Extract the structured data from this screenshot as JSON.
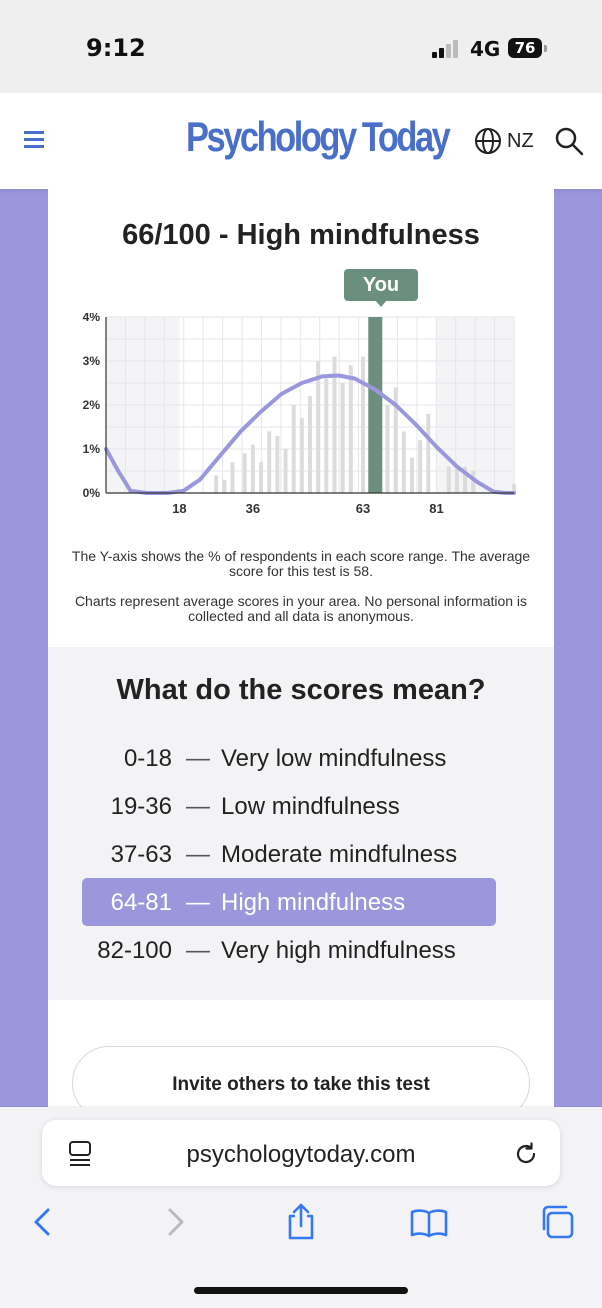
{
  "status_bar": {
    "time": "9:12",
    "network": "4G",
    "battery": "76"
  },
  "header": {
    "logo": "Psychology Today",
    "region": "NZ"
  },
  "result": {
    "title": "66/100 - High mindfulness",
    "marker_label": "You"
  },
  "chart_data": {
    "type": "bar",
    "x_ticks": [
      18,
      36,
      63,
      81
    ],
    "x_range": [
      0,
      100
    ],
    "y_ticks": [
      "0%",
      "1%",
      "2%",
      "3%",
      "4%"
    ],
    "ylim": [
      0,
      4
    ],
    "grid": true,
    "highlight_x": 66,
    "bars": [
      {
        "x": 27,
        "y": 0.4
      },
      {
        "x": 29,
        "y": 0.3
      },
      {
        "x": 31,
        "y": 0.7
      },
      {
        "x": 34,
        "y": 0.9
      },
      {
        "x": 36,
        "y": 1.1
      },
      {
        "x": 38,
        "y": 0.7
      },
      {
        "x": 40,
        "y": 1.4
      },
      {
        "x": 42,
        "y": 1.3
      },
      {
        "x": 44,
        "y": 1.0
      },
      {
        "x": 46,
        "y": 2.0
      },
      {
        "x": 48,
        "y": 1.7
      },
      {
        "x": 50,
        "y": 2.2
      },
      {
        "x": 52,
        "y": 3.0
      },
      {
        "x": 54,
        "y": 2.6
      },
      {
        "x": 56,
        "y": 3.1
      },
      {
        "x": 58,
        "y": 2.5
      },
      {
        "x": 60,
        "y": 2.9
      },
      {
        "x": 63,
        "y": 3.1
      },
      {
        "x": 66,
        "y": 4.0
      },
      {
        "x": 69,
        "y": 2.0
      },
      {
        "x": 71,
        "y": 2.4
      },
      {
        "x": 73,
        "y": 1.4
      },
      {
        "x": 75,
        "y": 0.8
      },
      {
        "x": 77,
        "y": 1.2
      },
      {
        "x": 79,
        "y": 1.8
      },
      {
        "x": 84,
        "y": 0.6
      },
      {
        "x": 86,
        "y": 0.6
      },
      {
        "x": 88,
        "y": 0.6
      },
      {
        "x": 90,
        "y": 0.5
      },
      {
        "x": 100,
        "y": 0.2
      }
    ],
    "curve": [
      {
        "x": 0,
        "y": 1.0
      },
      {
        "x": 3,
        "y": 0.5
      },
      {
        "x": 6,
        "y": 0.05
      },
      {
        "x": 10,
        "y": 0.0
      },
      {
        "x": 15,
        "y": 0.0
      },
      {
        "x": 19,
        "y": 0.05
      },
      {
        "x": 23,
        "y": 0.3
      },
      {
        "x": 28,
        "y": 0.85
      },
      {
        "x": 33,
        "y": 1.4
      },
      {
        "x": 38,
        "y": 1.85
      },
      {
        "x": 43,
        "y": 2.25
      },
      {
        "x": 48,
        "y": 2.5
      },
      {
        "x": 53,
        "y": 2.65
      },
      {
        "x": 57,
        "y": 2.67
      },
      {
        "x": 61,
        "y": 2.6
      },
      {
        "x": 66,
        "y": 2.35
      },
      {
        "x": 71,
        "y": 2.0
      },
      {
        "x": 76,
        "y": 1.55
      },
      {
        "x": 81,
        "y": 1.05
      },
      {
        "x": 86,
        "y": 0.6
      },
      {
        "x": 91,
        "y": 0.25
      },
      {
        "x": 95,
        "y": 0.03
      },
      {
        "x": 98,
        "y": 0.0
      },
      {
        "x": 100,
        "y": 0.0
      }
    ],
    "colors": {
      "bar": "#dcdcdc",
      "highlight": "#6b8f7e",
      "curve": "#9b97dd"
    }
  },
  "notes": {
    "y_axis": "The Y-axis shows the % of respondents in each score range. The average score for this test is 58.",
    "privacy": "Charts represent average scores in your area. No personal information is collected and all data is anonymous."
  },
  "scores": {
    "title": "What do the scores mean?",
    "dash": "—",
    "items": [
      {
        "range": "0-18",
        "label": "Very low mindfulness",
        "active": false
      },
      {
        "range": "19-36",
        "label": "Low mindfulness",
        "active": false
      },
      {
        "range": "37-63",
        "label": "Moderate mindfulness",
        "active": false
      },
      {
        "range": "64-81",
        "label": "High mindfulness",
        "active": true
      },
      {
        "range": "82-100",
        "label": "Very high mindfulness",
        "active": false
      }
    ]
  },
  "invite_label": "Invite others to take this test",
  "browser": {
    "url": "psychologytoday.com"
  },
  "colors": {
    "accent": "#9b97dd",
    "brand": "#4a6fc9",
    "marker": "#6b8f7e"
  }
}
